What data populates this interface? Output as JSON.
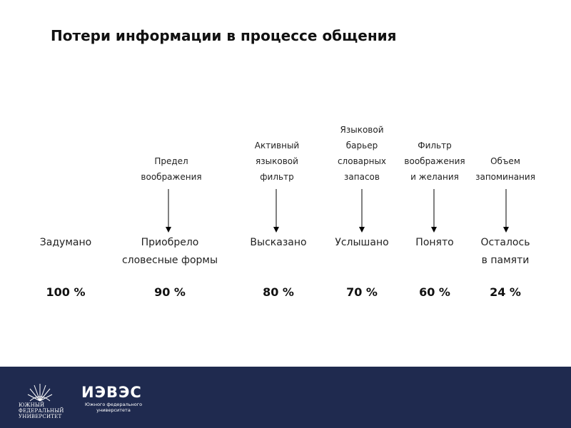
{
  "slide": {
    "title": "Потери информации в процессе общения"
  },
  "filters": [
    {
      "lines": [
        "Предел",
        "воображения"
      ]
    },
    {
      "lines": [
        "Активный",
        "языковой",
        "фильтр"
      ]
    },
    {
      "lines": [
        "Языковой",
        "барьер",
        "словарных",
        "запасов"
      ]
    },
    {
      "lines": [
        "Фильтр",
        "воображения",
        "и желания"
      ]
    },
    {
      "lines": [
        "Объем",
        "запоминания"
      ]
    }
  ],
  "stages": [
    {
      "lines": [
        "Задумано"
      ],
      "percent": "100 %"
    },
    {
      "lines": [
        "Приобрело",
        "словесные формы"
      ],
      "percent": "90 %"
    },
    {
      "lines": [
        "Высказано"
      ],
      "percent": "80 %"
    },
    {
      "lines": [
        "Услышано"
      ],
      "percent": "70 %"
    },
    {
      "lines": [
        "Понято"
      ],
      "percent": "60 %"
    },
    {
      "lines": [
        "Осталось",
        "в памяти"
      ],
      "percent": "24 %"
    }
  ],
  "footer": {
    "logo1": {
      "lines": [
        "ЮЖНЫЙ",
        "ФЕДЕРАЛЬНЫЙ",
        "УНИВЕРСИТЕТ"
      ]
    },
    "logo2": {
      "name": "ИЭВЭС",
      "sub_lines": [
        "Южного федерального",
        "университета"
      ]
    },
    "color": "#1f2a4f"
  }
}
